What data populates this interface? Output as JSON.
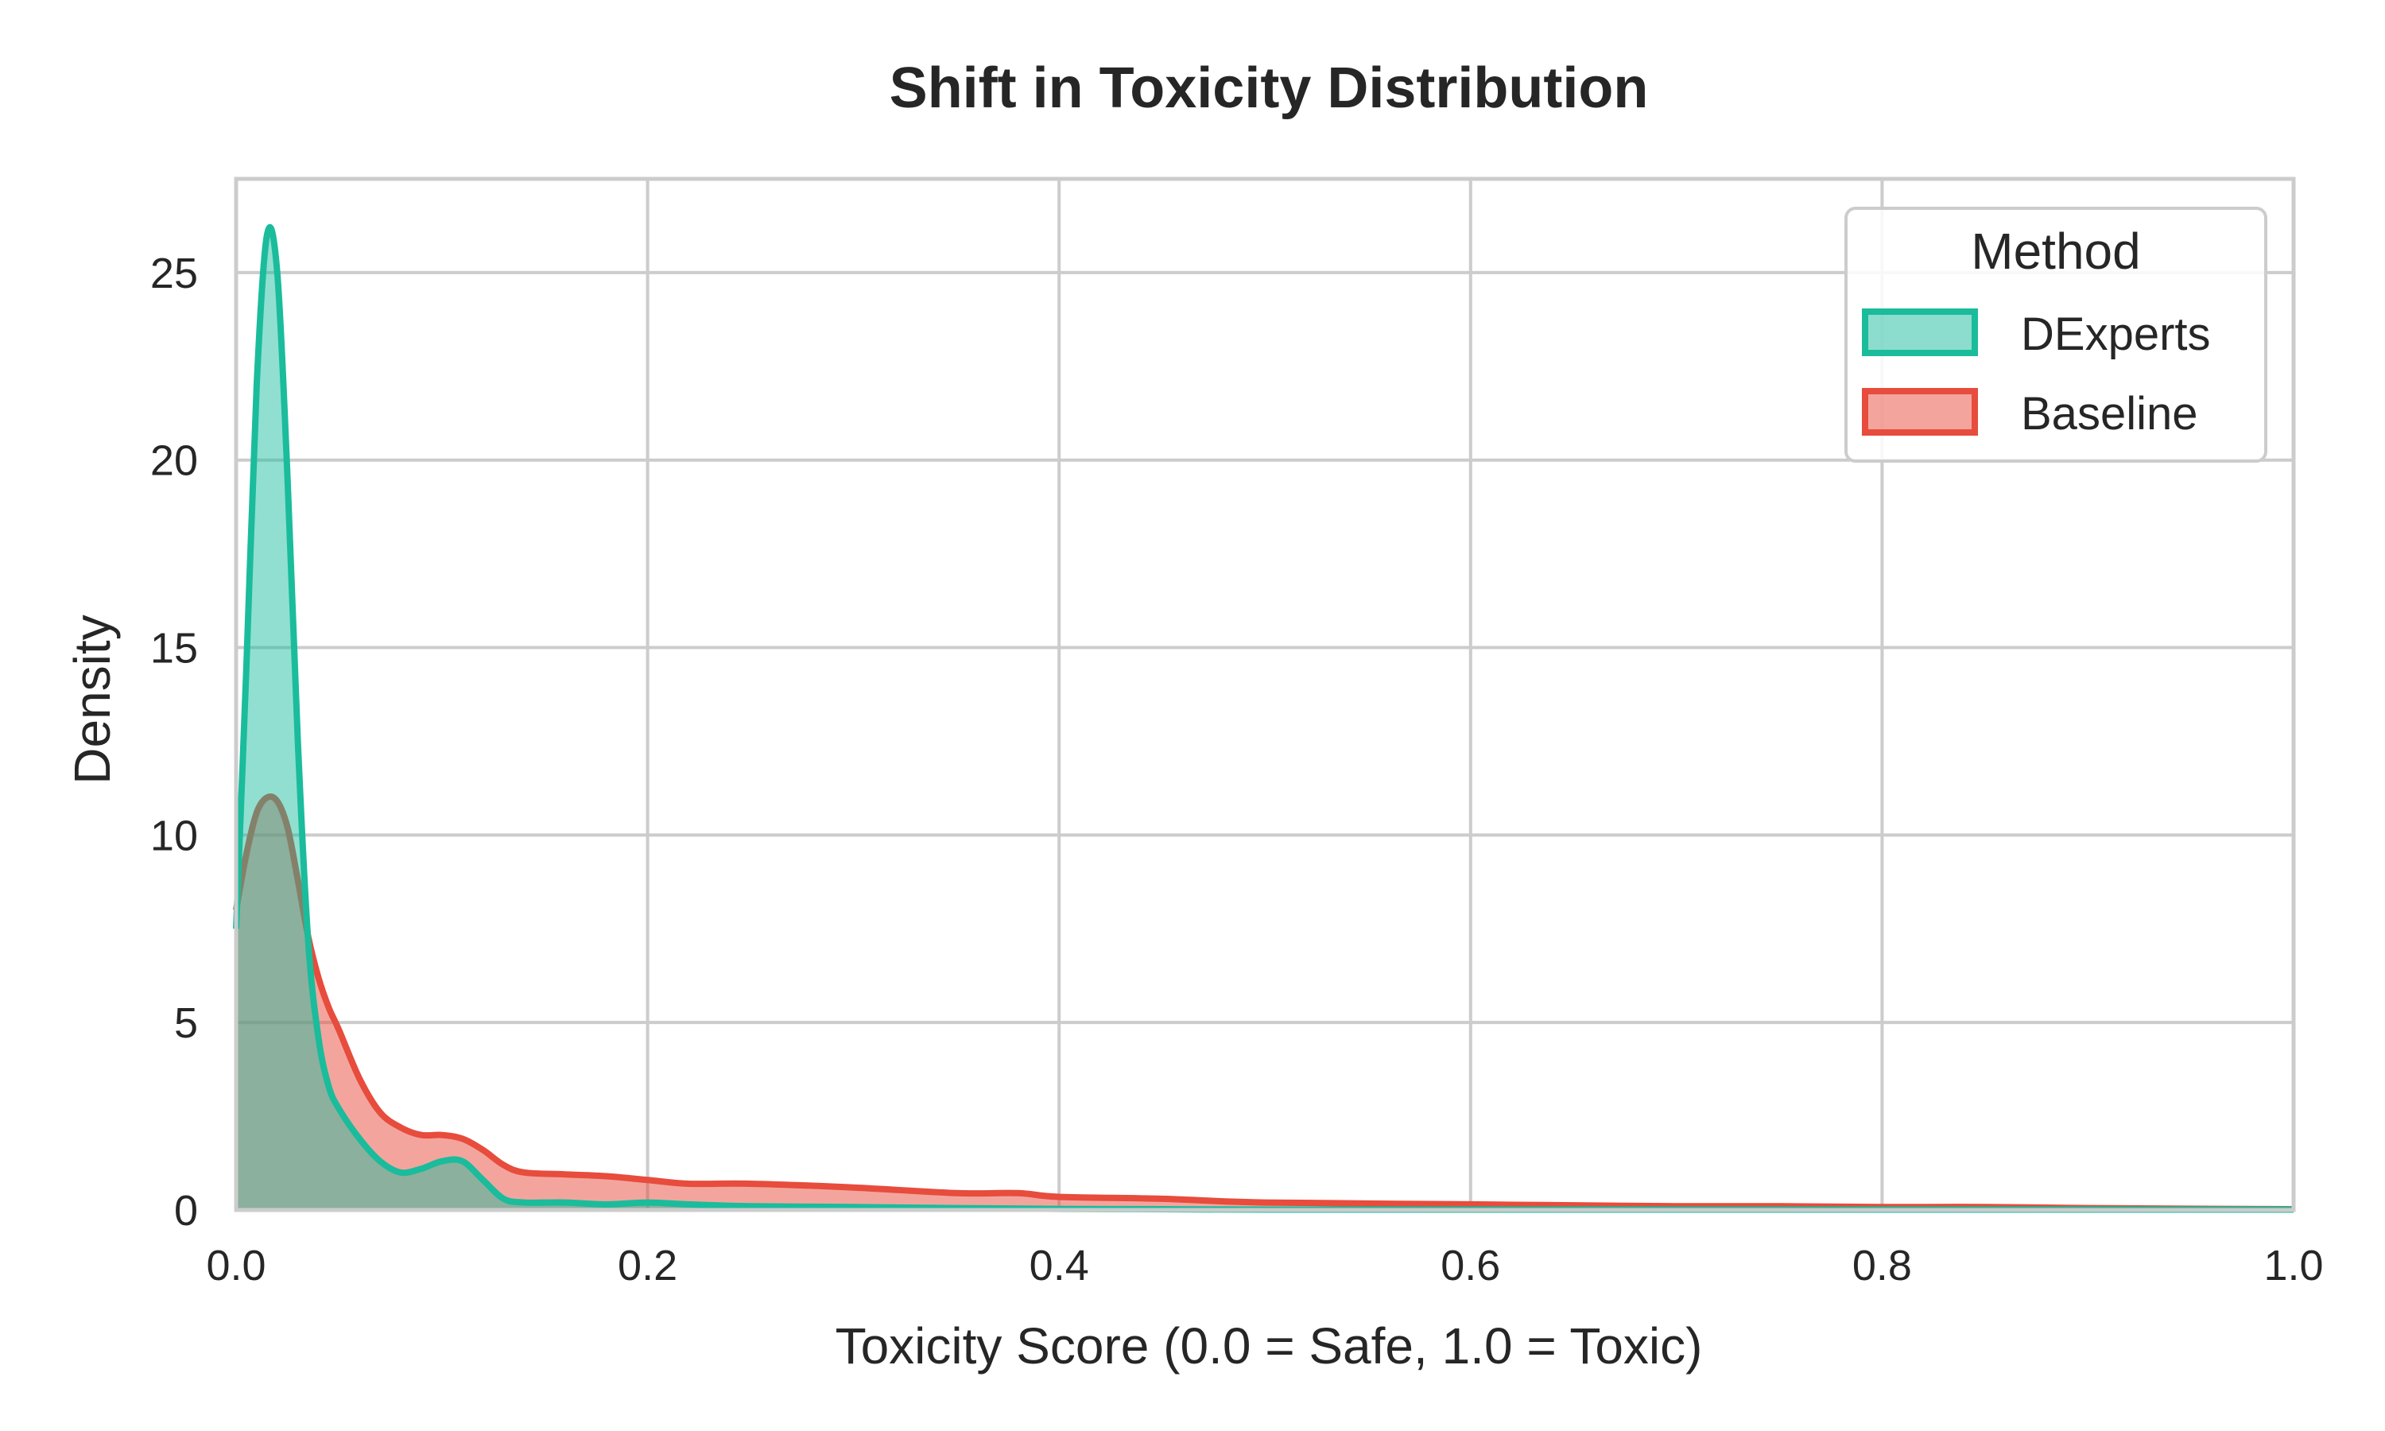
{
  "chart_data": {
    "type": "area",
    "title": "Shift in Toxicity Distribution",
    "xlabel": "Toxicity Score (0.0 = Safe, 1.0 = Toxic)",
    "ylabel": "Density",
    "xlim": [
      0,
      1
    ],
    "ylim": [
      0,
      27.5
    ],
    "xticks": [
      "0.0",
      "0.2",
      "0.4",
      "0.6",
      "0.8",
      "1.0"
    ],
    "yticks": [
      "0",
      "5",
      "10",
      "15",
      "20",
      "25"
    ],
    "grid": true,
    "legend": {
      "title": "Method",
      "position": "top-right"
    },
    "series": [
      {
        "name": "DExperts",
        "color": "#1abc9c",
        "x": [
          0,
          0.005,
          0.01,
          0.015,
          0.02,
          0.025,
          0.03,
          0.035,
          0.04,
          0.045,
          0.05,
          0.06,
          0.07,
          0.08,
          0.09,
          0.1,
          0.11,
          0.12,
          0.13,
          0.14,
          0.16,
          0.18,
          0.2,
          0.22,
          0.25,
          0.3,
          0.35,
          0.4,
          0.45,
          0.5,
          0.6,
          0.7,
          0.8,
          1.0
        ],
        "y": [
          7.5,
          14.5,
          22.0,
          26.0,
          25.0,
          19.5,
          12.5,
          7.2,
          4.6,
          3.3,
          2.7,
          1.9,
          1.3,
          1.0,
          1.1,
          1.3,
          1.3,
          0.8,
          0.3,
          0.2,
          0.2,
          0.15,
          0.2,
          0.15,
          0.1,
          0.08,
          0.05,
          0.03,
          0.02,
          0.01,
          0.01,
          0.01,
          0.01,
          0.01
        ]
      },
      {
        "name": "Baseline",
        "color": "#e74c3c",
        "x": [
          0,
          0.005,
          0.01,
          0.015,
          0.02,
          0.025,
          0.03,
          0.035,
          0.04,
          0.045,
          0.05,
          0.06,
          0.07,
          0.08,
          0.09,
          0.1,
          0.11,
          0.12,
          0.13,
          0.14,
          0.16,
          0.18,
          0.2,
          0.22,
          0.25,
          0.3,
          0.35,
          0.38,
          0.4,
          0.45,
          0.5,
          0.6,
          0.7,
          0.75,
          0.8,
          0.85,
          0.9,
          1.0
        ],
        "y": [
          8.0,
          9.5,
          10.6,
          11.0,
          10.9,
          10.2,
          8.8,
          7.3,
          6.2,
          5.4,
          4.8,
          3.5,
          2.6,
          2.2,
          2.0,
          2.0,
          1.9,
          1.6,
          1.2,
          1.0,
          0.95,
          0.9,
          0.8,
          0.7,
          0.7,
          0.6,
          0.45,
          0.45,
          0.35,
          0.3,
          0.2,
          0.15,
          0.1,
          0.1,
          0.08,
          0.08,
          0.05,
          0.02
        ]
      }
    ]
  }
}
